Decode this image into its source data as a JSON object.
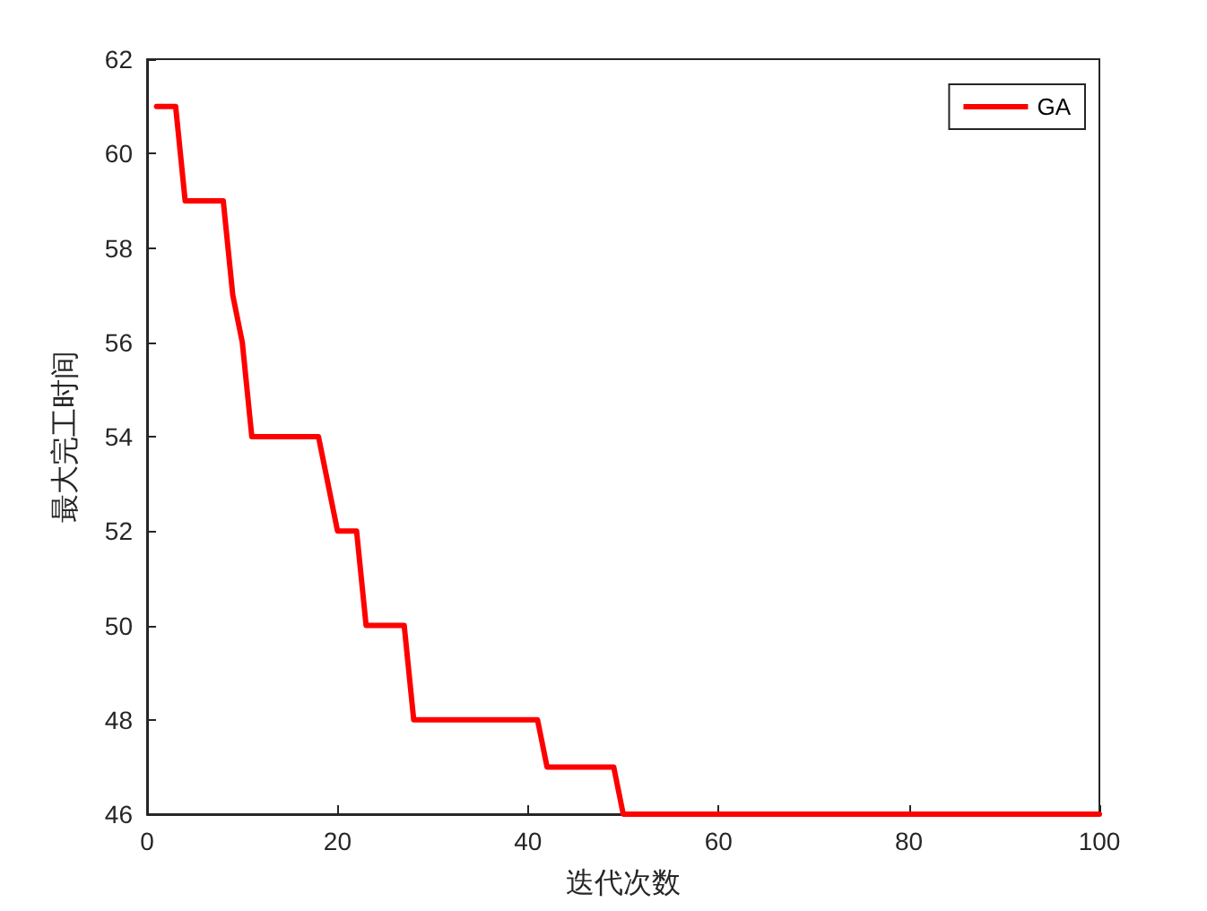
{
  "chart_data": {
    "type": "line",
    "xlabel": "迭代次数",
    "ylabel": "最大完工时间",
    "xlim": [
      0,
      100
    ],
    "xticks": [
      0,
      20,
      40,
      60,
      80,
      100
    ],
    "ylim": [
      46,
      62
    ],
    "yticks": [
      46,
      48,
      50,
      52,
      54,
      56,
      58,
      60,
      62
    ],
    "series": [
      {
        "name": "GA",
        "color": "#ff0000",
        "x": [
          1,
          3,
          4,
          8,
          9,
          10,
          11,
          18,
          19,
          20,
          22,
          23,
          27,
          28,
          41,
          42,
          49,
          50,
          100
        ],
        "values": [
          61,
          61,
          59,
          59,
          57,
          56,
          54,
          54,
          53,
          52,
          52,
          50,
          50,
          48,
          48,
          47,
          47,
          46,
          46
        ]
      }
    ],
    "legend": "top right",
    "grid": false,
    "marker": "none",
    "line_style": "solid"
  }
}
